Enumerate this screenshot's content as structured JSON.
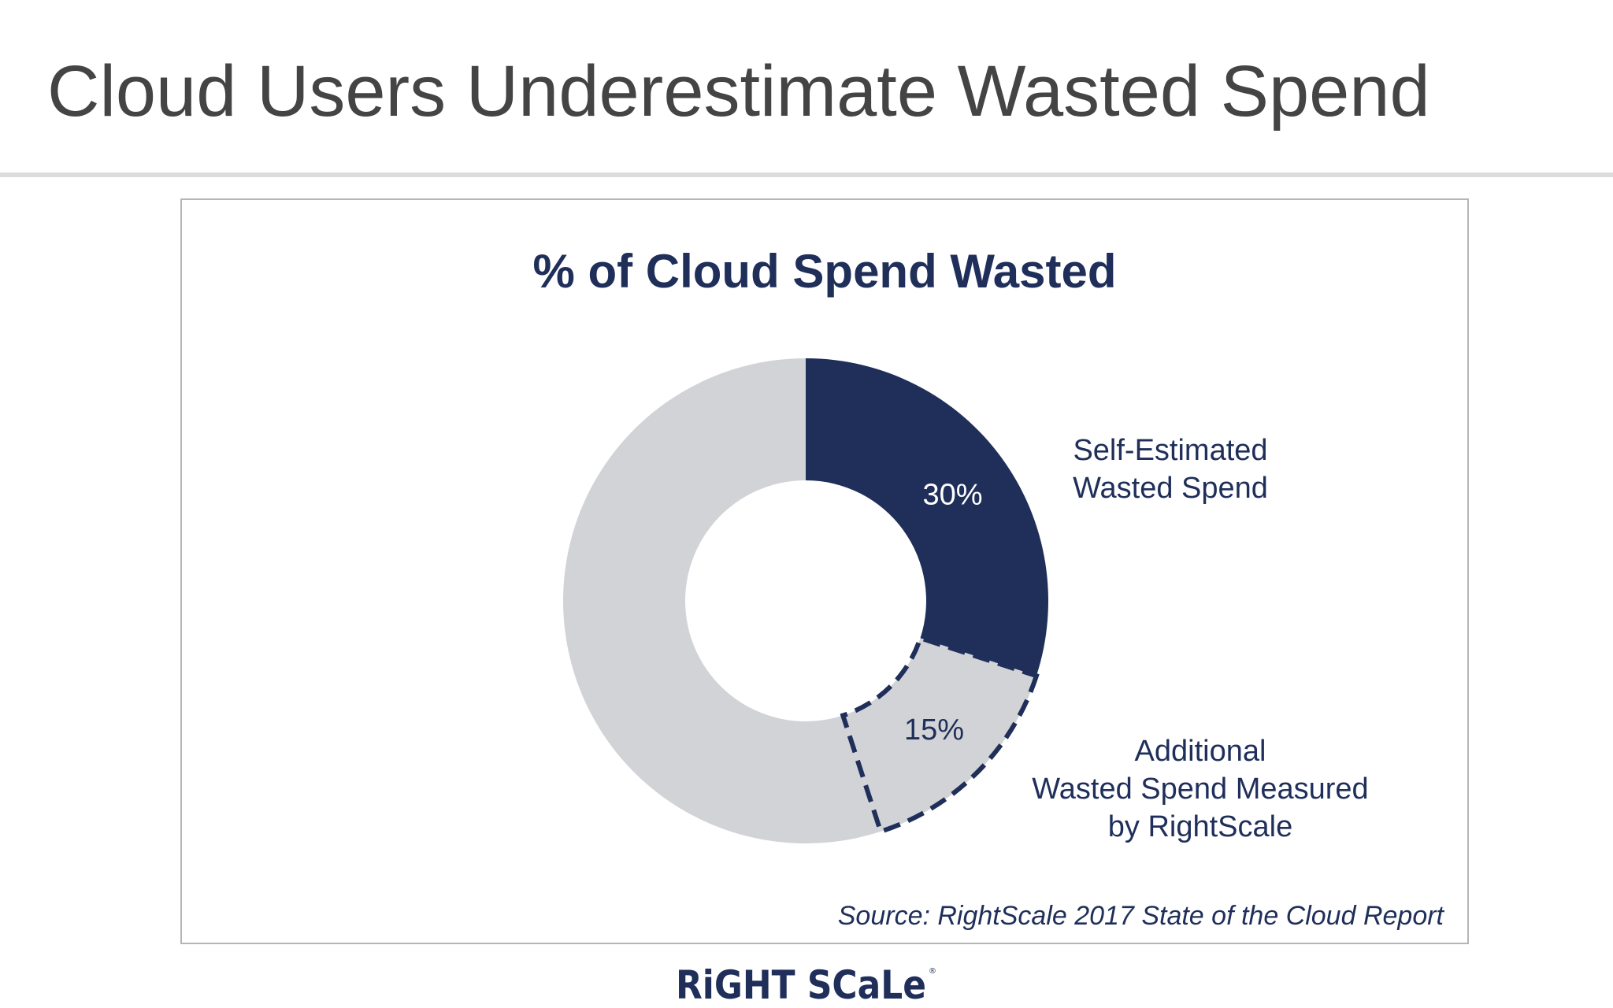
{
  "slide": {
    "title": "Cloud Users Underestimate Wasted Spend",
    "source": "Source: RightScale 2017 State of the Cloud Report",
    "logo_text": "RiGHT SCaLe"
  },
  "colors": {
    "navy": "#1f2f5a",
    "gray": "#d2d3d6",
    "title_gray": "#444444"
  },
  "chart_data": {
    "type": "pie",
    "variant": "donut",
    "title": "% of Cloud Spend Wasted",
    "slices": [
      {
        "name": "Self-Estimated Wasted Spend",
        "label_lines": [
          "Self-Estimated",
          "Wasted Spend"
        ],
        "value": 30,
        "display": "30%",
        "color": "#1f2f5a",
        "style": "solid"
      },
      {
        "name": "Additional Wasted Spend Measured by RightScale",
        "label_lines": [
          "Additional",
          "Wasted Spend Measured",
          "by RightScale"
        ],
        "value": 15,
        "display": "15%",
        "color": "#d2d3d6",
        "style": "dashed-outline"
      },
      {
        "name": "",
        "value": 55,
        "display": "",
        "color": "#d2d3d6",
        "style": "solid"
      }
    ]
  }
}
